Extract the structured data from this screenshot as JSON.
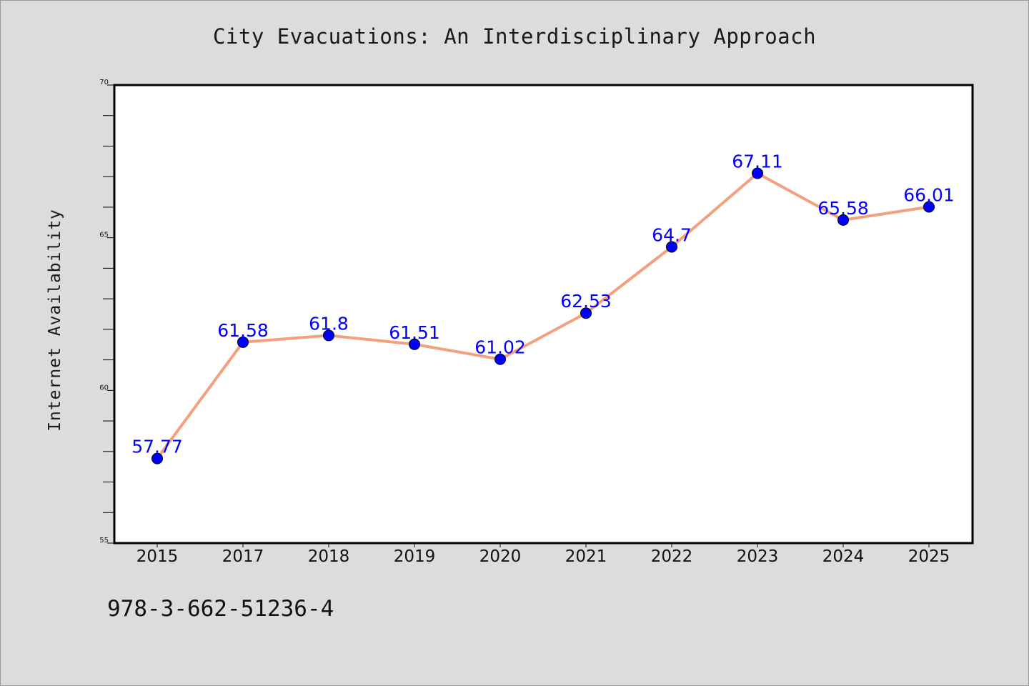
{
  "chart_data": {
    "type": "line",
    "title": "City Evacuations: An Interdisciplinary Approach",
    "xlabel": "",
    "ylabel": "Internet Availability",
    "categories": [
      "2015",
      "2017",
      "2018",
      "2019",
      "2020",
      "2021",
      "2022",
      "2023",
      "2024",
      "2025"
    ],
    "series": [
      {
        "values": [
          57.77,
          61.58,
          61.8,
          61.51,
          61.02,
          62.53,
          64.7,
          67.11,
          65.58,
          66.01
        ],
        "data_labels": [
          "57.77",
          "61.58",
          "61.8",
          "61.51",
          "61.02",
          "62.53",
          "64.7",
          "67.11",
          "65.58",
          "66.01"
        ],
        "line_color": "#f4a07e",
        "marker_color": "#0000ff"
      }
    ],
    "ylim": [
      55,
      70
    ],
    "y_ticks": [
      "55",
      "60",
      "65",
      "70"
    ],
    "grid": false,
    "legend": "none"
  },
  "footer_note": "978-3-662-51236-4"
}
